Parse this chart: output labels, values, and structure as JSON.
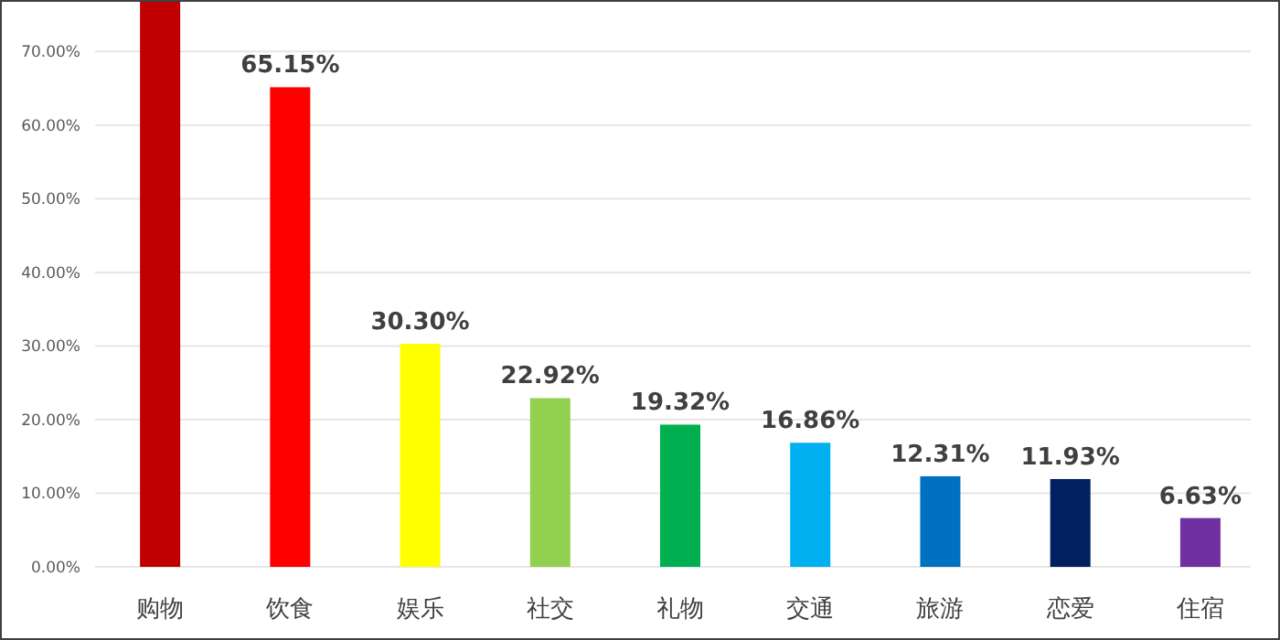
{
  "chart_data": {
    "type": "bar",
    "categories": [
      "购物",
      "饮食",
      "娱乐",
      "社交",
      "礼物",
      "交通",
      "旅游",
      "恋爱",
      "住宿"
    ],
    "values": [
      77,
      65.15,
      30.3,
      22.92,
      19.32,
      16.86,
      12.31,
      11.93,
      6.63
    ],
    "value_labels": [
      null,
      "65.15%",
      "30.30%",
      "22.92%",
      "19.32%",
      "16.86%",
      "12.31%",
      "11.93%",
      "6.63%"
    ],
    "colors": [
      "#c00000",
      "#ff0000",
      "#ffff00",
      "#92d050",
      "#00b050",
      "#00b0f0",
      "#0070c0",
      "#002060",
      "#7030a0"
    ],
    "ylim": [
      0,
      77
    ],
    "yticks": [
      {
        "value": 0,
        "label": "0.00%"
      },
      {
        "value": 10,
        "label": "10.00%"
      },
      {
        "value": 20,
        "label": "20.00%"
      },
      {
        "value": 30,
        "label": "30.00%"
      },
      {
        "value": 40,
        "label": "40.00%"
      },
      {
        "value": 50,
        "label": "50.00%"
      },
      {
        "value": 60,
        "label": "60.00%"
      },
      {
        "value": 70,
        "label": "70.00%"
      }
    ],
    "grid": "y"
  }
}
